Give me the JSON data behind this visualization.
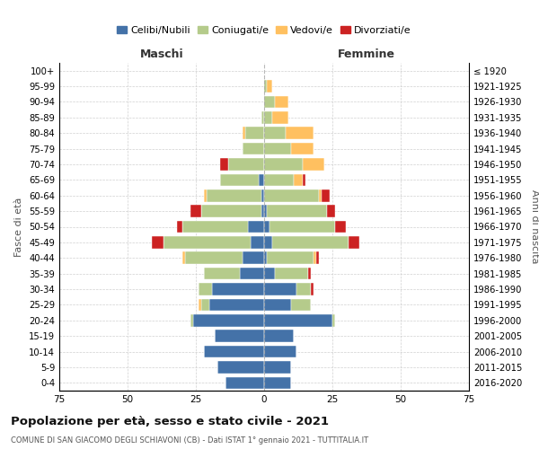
{
  "age_groups": [
    "0-4",
    "5-9",
    "10-14",
    "15-19",
    "20-24",
    "25-29",
    "30-34",
    "35-39",
    "40-44",
    "45-49",
    "50-54",
    "55-59",
    "60-64",
    "65-69",
    "70-74",
    "75-79",
    "80-84",
    "85-89",
    "90-94",
    "95-99",
    "100+"
  ],
  "birth_years": [
    "2016-2020",
    "2011-2015",
    "2006-2010",
    "2001-2005",
    "1996-2000",
    "1991-1995",
    "1986-1990",
    "1981-1985",
    "1976-1980",
    "1971-1975",
    "1966-1970",
    "1961-1965",
    "1956-1960",
    "1951-1955",
    "1946-1950",
    "1941-1945",
    "1936-1940",
    "1931-1935",
    "1926-1930",
    "1921-1925",
    "≤ 1920"
  ],
  "males": {
    "celibi": [
      14,
      17,
      22,
      18,
      26,
      20,
      19,
      9,
      8,
      5,
      6,
      1,
      1,
      2,
      0,
      0,
      0,
      0,
      0,
      0,
      0
    ],
    "coniugati": [
      0,
      0,
      0,
      0,
      1,
      3,
      5,
      13,
      21,
      32,
      24,
      22,
      20,
      14,
      13,
      8,
      7,
      1,
      0,
      0,
      0
    ],
    "vedovi": [
      0,
      0,
      0,
      0,
      0,
      1,
      0,
      0,
      1,
      0,
      0,
      0,
      1,
      0,
      0,
      0,
      1,
      0,
      0,
      0,
      0
    ],
    "divorziati": [
      0,
      0,
      0,
      0,
      0,
      0,
      0,
      0,
      0,
      4,
      2,
      4,
      0,
      0,
      3,
      0,
      0,
      0,
      0,
      0,
      0
    ]
  },
  "females": {
    "nubili": [
      10,
      10,
      12,
      11,
      25,
      10,
      12,
      4,
      1,
      3,
      2,
      1,
      0,
      0,
      0,
      0,
      0,
      0,
      0,
      0,
      0
    ],
    "coniugate": [
      0,
      0,
      0,
      0,
      1,
      7,
      5,
      12,
      17,
      28,
      24,
      22,
      20,
      11,
      14,
      10,
      8,
      3,
      4,
      1,
      0
    ],
    "vedove": [
      0,
      0,
      0,
      0,
      0,
      0,
      0,
      0,
      1,
      0,
      0,
      0,
      1,
      3,
      8,
      8,
      10,
      6,
      5,
      2,
      0
    ],
    "divorziate": [
      0,
      0,
      0,
      0,
      0,
      0,
      1,
      1,
      1,
      4,
      4,
      3,
      3,
      1,
      0,
      0,
      0,
      0,
      0,
      0,
      0
    ]
  },
  "colors": {
    "celibi": "#4472a8",
    "coniugati": "#b5cb8b",
    "vedovi": "#ffc060",
    "divorziati": "#cc2222"
  },
  "xlim": 75,
  "title": "Popolazione per età, sesso e stato civile - 2021",
  "subtitle": "COMUNE DI SAN GIACOMO DEGLI SCHIAVONI (CB) - Dati ISTAT 1° gennaio 2021 - TUTTITALIA.IT",
  "xlabel_left": "Maschi",
  "xlabel_right": "Femmine",
  "ylabel_left": "Fasce di età",
  "ylabel_right": "Anni di nascita",
  "legend_labels": [
    "Celibi/Nubili",
    "Coniugati/e",
    "Vedovi/e",
    "Divorziati/e"
  ],
  "background_color": "#ffffff",
  "grid_color": "#cccccc"
}
